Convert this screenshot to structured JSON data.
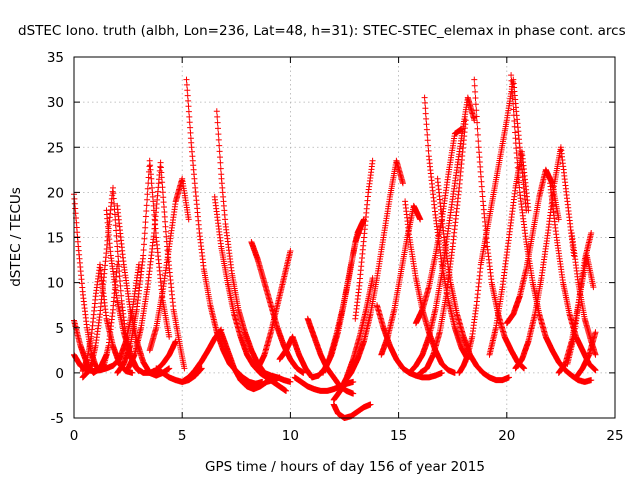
{
  "chart_data": {
    "type": "scatter",
    "title": "dSTEC Iono. truth (albh, Lon=236, Lat=48, h=31): STEC-STEC_elemax in phase cont. arcs",
    "xlabel": "GPS time / hours of day 156 of year 2015",
    "ylabel": "dSTEC  / TECUs",
    "xlim": [
      0,
      25
    ],
    "ylim": [
      -5,
      35
    ],
    "xticks": [
      0,
      5,
      10,
      15,
      20,
      25
    ],
    "yticks": [
      -5,
      0,
      5,
      10,
      15,
      20,
      25,
      30,
      35
    ],
    "grid": true,
    "marker": "+",
    "color": "#ff0000",
    "series": [
      {
        "x": [
          0.0,
          0.2,
          0.4,
          0.6,
          0.8,
          1.0,
          1.2,
          1.4,
          1.6,
          1.8,
          2.0
        ],
        "y": [
          19.8,
          14.0,
          9.0,
          5.0,
          2.2,
          0.8,
          0.3,
          1.0,
          3.0,
          7.0,
          12.0
        ]
      },
      {
        "x": [
          0.0,
          0.3,
          0.6,
          0.9,
          1.2,
          1.5
        ],
        "y": [
          5.8,
          3.0,
          1.0,
          0.0,
          0.5,
          2.0
        ]
      },
      {
        "x": [
          0.0,
          0.3,
          0.6,
          0.9,
          1.2,
          1.5,
          1.8,
          2.1,
          2.4,
          2.7,
          3.0
        ],
        "y": [
          2.0,
          0.8,
          0.3,
          0.2,
          0.3,
          0.5,
          0.8,
          1.5,
          3.5,
          7.0,
          12.0
        ]
      },
      {
        "x": [
          0.4,
          0.6,
          0.8,
          1.0,
          1.2,
          1.5,
          1.8,
          2.1,
          2.4,
          2.7
        ],
        "y": [
          0.2,
          1.5,
          4.0,
          8.5,
          12.0,
          6.0,
          3.0,
          1.0,
          0.2,
          0.0
        ]
      },
      {
        "x": [
          0.4,
          0.6,
          0.8,
          1.0,
          1.2,
          1.4,
          1.6,
          1.8,
          2.0,
          2.2,
          2.4,
          2.6,
          2.8,
          3.0
        ],
        "y": [
          -0.5,
          0.0,
          1.0,
          3.0,
          6.5,
          11.0,
          16.0,
          20.5,
          14.0,
          8.0,
          4.0,
          2.0,
          0.8,
          0.2
        ]
      },
      {
        "x": [
          1.5,
          1.7,
          2.0,
          2.3,
          2.6,
          2.9,
          3.2,
          3.5,
          3.8,
          4.1,
          4.4,
          4.7
        ],
        "y": [
          18.0,
          13.0,
          8.0,
          4.5,
          2.0,
          0.5,
          0.0,
          0.0,
          0.3,
          1.0,
          2.0,
          3.5
        ]
      },
      {
        "x": [
          2.0,
          2.3,
          2.6,
          2.9,
          3.2,
          3.5,
          3.8,
          4.1,
          4.4
        ],
        "y": [
          0.0,
          1.0,
          3.0,
          7.0,
          13.0,
          23.5,
          15.0,
          8.0,
          4.0
        ]
      },
      {
        "x": [
          2.0,
          2.3,
          2.6,
          2.9,
          3.2,
          3.5,
          3.8,
          4.1,
          4.4
        ],
        "y": [
          18.5,
          12.0,
          7.0,
          3.5,
          1.2,
          0.0,
          -0.3,
          0.0,
          0.5
        ]
      },
      {
        "x": [
          2.5,
          2.8,
          3.1,
          3.4,
          3.7,
          4.0,
          4.3,
          4.6,
          4.9,
          5.1
        ],
        "y": [
          0.5,
          2.0,
          5.0,
          9.5,
          15.5,
          23.3,
          14.0,
          7.0,
          3.0,
          0.5
        ]
      },
      {
        "x": [
          3.5,
          3.8,
          4.1,
          4.4,
          4.7,
          5.0,
          5.3
        ],
        "y": [
          2.5,
          5.0,
          9.0,
          14.0,
          19.0,
          21.5,
          17.0
        ]
      },
      {
        "x": [
          3.8,
          4.1,
          4.4,
          4.7,
          5.0,
          5.3,
          5.6,
          5.9
        ],
        "y": [
          0.5,
          0.0,
          -0.5,
          -0.8,
          -1.0,
          -0.8,
          -0.3,
          0.5
        ]
      },
      {
        "x": [
          5.2,
          5.4,
          5.6,
          5.8,
          6.0,
          6.3,
          6.6,
          6.9,
          7.2,
          7.5,
          7.8,
          8.1,
          8.4,
          8.7
        ],
        "y": [
          32.5,
          26.0,
          20.5,
          15.5,
          11.5,
          7.5,
          4.5,
          2.5,
          1.0,
          0.2,
          -0.5,
          -1.0,
          -1.2,
          -1.0
        ]
      },
      {
        "x": [
          5.0,
          5.3,
          5.6,
          5.9,
          6.2,
          6.5,
          6.8
        ],
        "y": [
          -1.0,
          -0.5,
          0.3,
          1.3,
          2.5,
          3.8,
          4.8
        ]
      },
      {
        "x": [
          6.6,
          6.8,
          7.0,
          7.3,
          7.6,
          7.9,
          8.2,
          8.5,
          8.8,
          9.1,
          9.4,
          9.7,
          10.0
        ],
        "y": [
          29.0,
          22.0,
          16.5,
          11.0,
          7.0,
          4.5,
          2.5,
          1.0,
          0.0,
          -0.3,
          -0.5,
          -0.8,
          -1.0
        ]
      },
      {
        "x": [
          6.5,
          6.8,
          7.1,
          7.4,
          7.7,
          8.0,
          8.3,
          8.6,
          8.9,
          9.2,
          9.5,
          9.8
        ],
        "y": [
          19.5,
          14.0,
          10.0,
          6.5,
          4.0,
          2.0,
          0.8,
          0.0,
          -0.5,
          -1.0,
          -1.5,
          -2.0
        ]
      },
      {
        "x": [
          6.8,
          7.1,
          7.4,
          7.7,
          8.0,
          8.3,
          8.6,
          8.9,
          9.2,
          9.5
        ],
        "y": [
          4.5,
          2.5,
          0.5,
          -0.8,
          -1.5,
          -1.8,
          -1.5,
          -1.0,
          -0.8,
          -0.5
        ]
      },
      {
        "x": [
          8.2,
          8.5,
          8.8,
          9.1,
          9.4,
          9.7,
          10.0,
          10.3,
          10.6
        ],
        "y": [
          14.5,
          12.5,
          10.0,
          7.5,
          5.0,
          3.0,
          1.5,
          0.5,
          0.0
        ]
      },
      {
        "x": [
          8.5,
          8.8,
          9.1,
          9.4,
          9.7,
          10.0
        ],
        "y": [
          0.5,
          2.0,
          4.5,
          7.5,
          10.5,
          13.5
        ]
      },
      {
        "x": [
          9.5,
          9.8,
          10.1,
          10.4,
          10.7,
          11.0
        ],
        "y": [
          1.5,
          2.5,
          4.0,
          2.0,
          0.5,
          -0.5
        ]
      },
      {
        "x": [
          10.2,
          10.5,
          10.8,
          11.1,
          11.4,
          11.7,
          12.0,
          12.3,
          12.6,
          12.9
        ],
        "y": [
          -0.5,
          -1.0,
          -1.5,
          -1.8,
          -2.0,
          -2.0,
          -1.8,
          -1.5,
          -1.2,
          -1.0
        ]
      },
      {
        "x": [
          10.8,
          11.1,
          11.4,
          11.7,
          12.0,
          12.3,
          12.6,
          12.9
        ],
        "y": [
          6.0,
          4.0,
          2.0,
          0.5,
          -0.5,
          -1.5,
          -2.0,
          -2.3
        ]
      },
      {
        "x": [
          11.0,
          11.3,
          11.6,
          11.9,
          12.2,
          12.5,
          12.8,
          13.1,
          13.4
        ],
        "y": [
          -0.5,
          -0.3,
          0.5,
          2.0,
          4.5,
          8.0,
          12.0,
          15.5,
          17.0
        ]
      },
      {
        "x": [
          11.5,
          11.8,
          12.1,
          12.4,
          12.7,
          13.0,
          13.3
        ],
        "y": [
          0.0,
          1.5,
          4.0,
          7.0,
          10.5,
          14.5,
          16.5
        ]
      },
      {
        "x": [
          12.0,
          12.2,
          12.5,
          12.8,
          13.1,
          13.4,
          13.7
        ],
        "y": [
          -3.5,
          -4.5,
          -5.0,
          -4.8,
          -4.3,
          -3.8,
          -3.5
        ]
      },
      {
        "x": [
          12.0,
          12.3,
          12.6,
          12.9,
          13.2,
          13.5,
          13.8
        ],
        "y": [
          -3.0,
          -2.0,
          -0.5,
          1.5,
          4.0,
          7.0,
          10.5
        ]
      },
      {
        "x": [
          12.5,
          12.8,
          13.1,
          13.4,
          13.7,
          14.0,
          14.3,
          14.6,
          14.9,
          15.2
        ],
        "y": [
          -1.0,
          0.0,
          1.5,
          3.5,
          6.5,
          10.5,
          15.0,
          19.5,
          23.5,
          21.0
        ]
      },
      {
        "x": [
          13.0,
          13.2,
          13.4,
          13.6,
          13.8
        ],
        "y": [
          6.0,
          10.0,
          15.0,
          20.0,
          23.5
        ]
      },
      {
        "x": [
          14.0,
          14.3,
          14.6,
          14.9,
          15.2,
          15.5,
          15.8,
          16.1,
          16.4,
          16.7,
          17.0
        ],
        "y": [
          7.5,
          5.0,
          3.0,
          1.5,
          0.5,
          0.0,
          -0.3,
          -0.5,
          -0.5,
          -0.3,
          0.0
        ]
      },
      {
        "x": [
          14.2,
          14.5,
          14.8,
          15.1,
          15.4,
          15.7,
          16.0
        ],
        "y": [
          2.0,
          4.0,
          7.0,
          11.0,
          15.0,
          18.5,
          17.0
        ]
      },
      {
        "x": [
          15.3,
          15.5,
          15.8,
          16.1,
          16.4,
          16.7,
          17.0,
          17.3,
          17.6
        ],
        "y": [
          19.0,
          15.0,
          10.5,
          7.0,
          4.5,
          2.5,
          1.0,
          0.3,
          0.0
        ]
      },
      {
        "x": [
          15.5,
          15.8,
          16.1,
          16.4,
          16.7,
          17.0,
          17.3,
          17.6,
          17.9,
          18.2,
          18.5
        ],
        "y": [
          0.0,
          0.8,
          2.0,
          4.0,
          7.0,
          11.0,
          16.0,
          21.0,
          26.0,
          30.5,
          28.0
        ]
      },
      {
        "x": [
          15.8,
          16.1,
          16.4,
          16.7,
          17.0,
          17.3,
          17.6,
          17.9
        ],
        "y": [
          5.5,
          7.0,
          9.5,
          13.0,
          17.0,
          22.0,
          26.5,
          27.0
        ]
      },
      {
        "x": [
          16.0,
          16.3,
          16.6,
          16.9,
          17.2,
          17.5,
          17.8,
          18.1
        ],
        "y": [
          0.0,
          0.5,
          2.0,
          4.5,
          8.5,
          14.0,
          20.5,
          28.0
        ]
      },
      {
        "x": [
          16.2,
          16.4,
          16.7,
          17.0,
          17.3,
          17.6,
          17.9,
          18.2
        ],
        "y": [
          30.5,
          24.0,
          17.5,
          12.0,
          8.0,
          5.0,
          2.8,
          1.5
        ]
      },
      {
        "x": [
          16.8,
          17.1,
          17.4,
          17.7,
          18.0,
          18.3,
          18.6,
          18.9,
          19.2,
          19.5,
          19.8,
          20.1
        ],
        "y": [
          21.5,
          15.0,
          10.0,
          6.5,
          4.0,
          2.0,
          0.8,
          0.0,
          -0.5,
          -0.8,
          -0.8,
          -0.5
        ]
      },
      {
        "x": [
          17.8,
          18.0,
          18.2,
          18.4,
          18.6,
          18.8,
          19.1,
          19.4,
          19.7,
          20.0,
          20.3,
          20.6,
          20.9
        ],
        "y": [
          0.0,
          0.8,
          2.0,
          4.0,
          7.5,
          12.0,
          16.0,
          20.0,
          24.0,
          28.0,
          32.5,
          25.0,
          18.0
        ]
      },
      {
        "x": [
          18.5,
          18.7,
          18.9,
          19.1,
          19.3,
          19.6,
          19.9,
          20.2,
          20.5,
          20.8
        ],
        "y": [
          32.5,
          25.0,
          19.0,
          14.0,
          10.0,
          6.5,
          4.0,
          2.5,
          1.2,
          0.5
        ]
      },
      {
        "x": [
          19.2,
          19.5,
          19.8,
          20.1,
          20.4,
          20.7,
          21.0
        ],
        "y": [
          2.0,
          5.0,
          9.5,
          15.0,
          20.5,
          24.5,
          18.0
        ]
      },
      {
        "x": [
          20.2,
          20.4,
          20.6,
          20.9,
          21.2,
          21.5,
          21.8,
          22.1,
          22.4,
          22.7,
          23.0,
          23.3,
          23.6,
          23.9
        ],
        "y": [
          33.0,
          26.0,
          20.0,
          14.5,
          10.0,
          6.5,
          4.0,
          2.5,
          1.2,
          0.3,
          -0.3,
          -0.8,
          -1.0,
          -0.8
        ]
      },
      {
        "x": [
          20.0,
          20.3,
          20.6,
          20.9,
          21.2,
          21.5,
          21.8,
          22.1,
          22.4
        ],
        "y": [
          5.5,
          6.5,
          8.5,
          11.5,
          15.5,
          19.5,
          22.5,
          21.0,
          17.0
        ]
      },
      {
        "x": [
          20.4,
          20.7,
          21.0,
          21.3,
          21.6,
          21.9,
          22.2,
          22.5,
          22.8,
          23.1
        ],
        "y": [
          0.5,
          1.5,
          3.5,
          6.5,
          10.5,
          15.5,
          21.0,
          25.0,
          19.0,
          13.0
        ]
      },
      {
        "x": [
          22.0,
          22.3,
          22.6,
          22.9,
          23.2,
          23.5,
          23.8,
          24.1
        ],
        "y": [
          21.0,
          15.0,
          10.0,
          6.5,
          4.0,
          2.5,
          1.0,
          0.3
        ]
      },
      {
        "x": [
          22.4,
          22.7,
          23.0,
          23.3,
          23.6,
          23.9
        ],
        "y": [
          0.0,
          1.0,
          3.5,
          7.5,
          12.5,
          15.5
        ]
      },
      {
        "x": [
          22.8,
          23.1,
          23.4,
          23.7,
          24.0
        ],
        "y": [
          1.0,
          4.0,
          9.0,
          13.0,
          9.5
        ]
      },
      {
        "x": [
          23.0,
          23.3,
          23.6,
          23.9,
          24.1
        ],
        "y": [
          15.5,
          10.0,
          6.0,
          3.5,
          2.0
        ]
      },
      {
        "x": [
          23.2,
          23.5,
          23.8,
          24.1
        ],
        "y": [
          -0.5,
          0.5,
          2.0,
          4.5
        ]
      }
    ]
  }
}
